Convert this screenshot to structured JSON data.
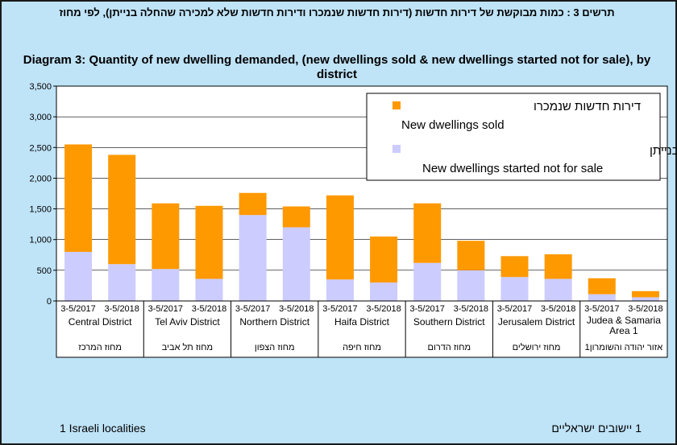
{
  "title_he": "תרשים 3 : כמות מבוקשת של דירות חדשות (דירות חדשות שנמכרו ודירות חדשות שלא למכירה שהחלה בנייתן), לפי מחוז",
  "title_en": "Diagram 3:  Quantity of new dwelling demanded, (new dwellings sold & new dwellings started not for sale), by district",
  "footnote_en": "1 Israeli localities",
  "footnote_he": "1 יישובים  ישראליים",
  "colors": {
    "sold": "#ff9900",
    "not_for_sale": "#ccccff",
    "background": "#bfe3f7",
    "plot": "#ffffff"
  },
  "chart_data": {
    "type": "bar",
    "stacked": true,
    "ylim": [
      0,
      3500
    ],
    "yticks": [
      0,
      500,
      1000,
      1500,
      2000,
      2500,
      3000,
      3500
    ],
    "ytick_labels": [
      "0",
      "500",
      "1,000",
      "1,500",
      "2,000",
      "2,500",
      "3,000",
      "3,500"
    ],
    "grid": true,
    "legend_position": "top-right",
    "categories": [
      "3-5/2017",
      "3-5/2018",
      "3-5/2017",
      "3-5/2018",
      "3-5/2017",
      "3-5/2018",
      "3-5/2017",
      "3-5/2018",
      "3-5/2017",
      "3-5/2018",
      "3-5/2017",
      "3-5/2018",
      "3-5/2017",
      "3-5/2018"
    ],
    "districts": [
      {
        "en": "Central District",
        "he": "מחוז המרכז"
      },
      {
        "en": "Tel Aviv District",
        "he": "מחוז תל אביב"
      },
      {
        "en": "Northern District",
        "he": "מחוז הצפון"
      },
      {
        "en": "Haifa District",
        "he": "מחוז חיפה"
      },
      {
        "en": "Southern District",
        "he": "מחוז הדרום"
      },
      {
        "en": "Jerusalem District",
        "he": "מחוז ירושלים"
      },
      {
        "en": "Judea & Samaria Area 1",
        "he": "אזור יהודה והשומרון1"
      }
    ],
    "series": [
      {
        "name": "New dwellings started not for sale",
        "name_he": "דירות חדשות שלא למכירה שהחלה בנייתן",
        "values": [
          800,
          600,
          520,
          360,
          1400,
          1200,
          350,
          300,
          620,
          500,
          390,
          360,
          110,
          60
        ]
      },
      {
        "name": "New dwellings sold",
        "name_he": "דירות חדשות שנמכרו",
        "values": [
          1750,
          1780,
          1070,
          1190,
          360,
          340,
          1370,
          750,
          970,
          480,
          340,
          400,
          260,
          100
        ]
      }
    ]
  }
}
